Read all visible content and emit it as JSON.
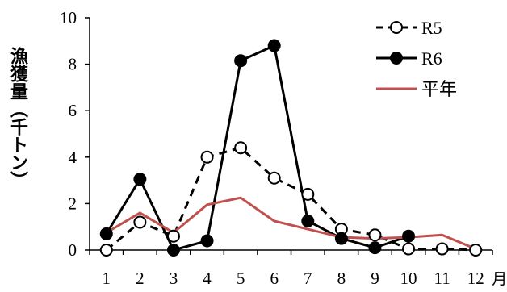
{
  "chart_data": {
    "type": "line",
    "title": "",
    "xlabel": "月",
    "ylabel": "漁獲量（千トン）",
    "x": [
      "1",
      "2",
      "3",
      "4",
      "5",
      "6",
      "7",
      "8",
      "9",
      "10",
      "11",
      "12"
    ],
    "ylim": [
      0,
      10
    ],
    "yticks": [
      "0",
      "2",
      "4",
      "6",
      "8",
      "10"
    ],
    "grid": false,
    "legend_position": "top-right",
    "series": [
      {
        "name": "R5",
        "values": [
          0.0,
          1.2,
          0.6,
          4.0,
          4.4,
          3.1,
          2.4,
          0.9,
          0.65,
          0.05,
          0.05,
          0.0
        ],
        "color": "#000000",
        "line": "dashed",
        "marker": "open-circle"
      },
      {
        "name": "R6",
        "values": [
          0.7,
          3.05,
          0.0,
          0.4,
          8.15,
          8.8,
          1.25,
          0.5,
          0.1,
          0.6,
          null,
          null
        ],
        "color": "#000000",
        "line": "solid",
        "marker": "filled-circle"
      },
      {
        "name": "平年",
        "values": [
          0.75,
          1.6,
          0.75,
          1.95,
          2.25,
          1.25,
          0.9,
          0.55,
          0.5,
          0.55,
          0.65,
          0.05
        ],
        "color": "#c0504d",
        "line": "solid",
        "marker": "none"
      }
    ]
  }
}
